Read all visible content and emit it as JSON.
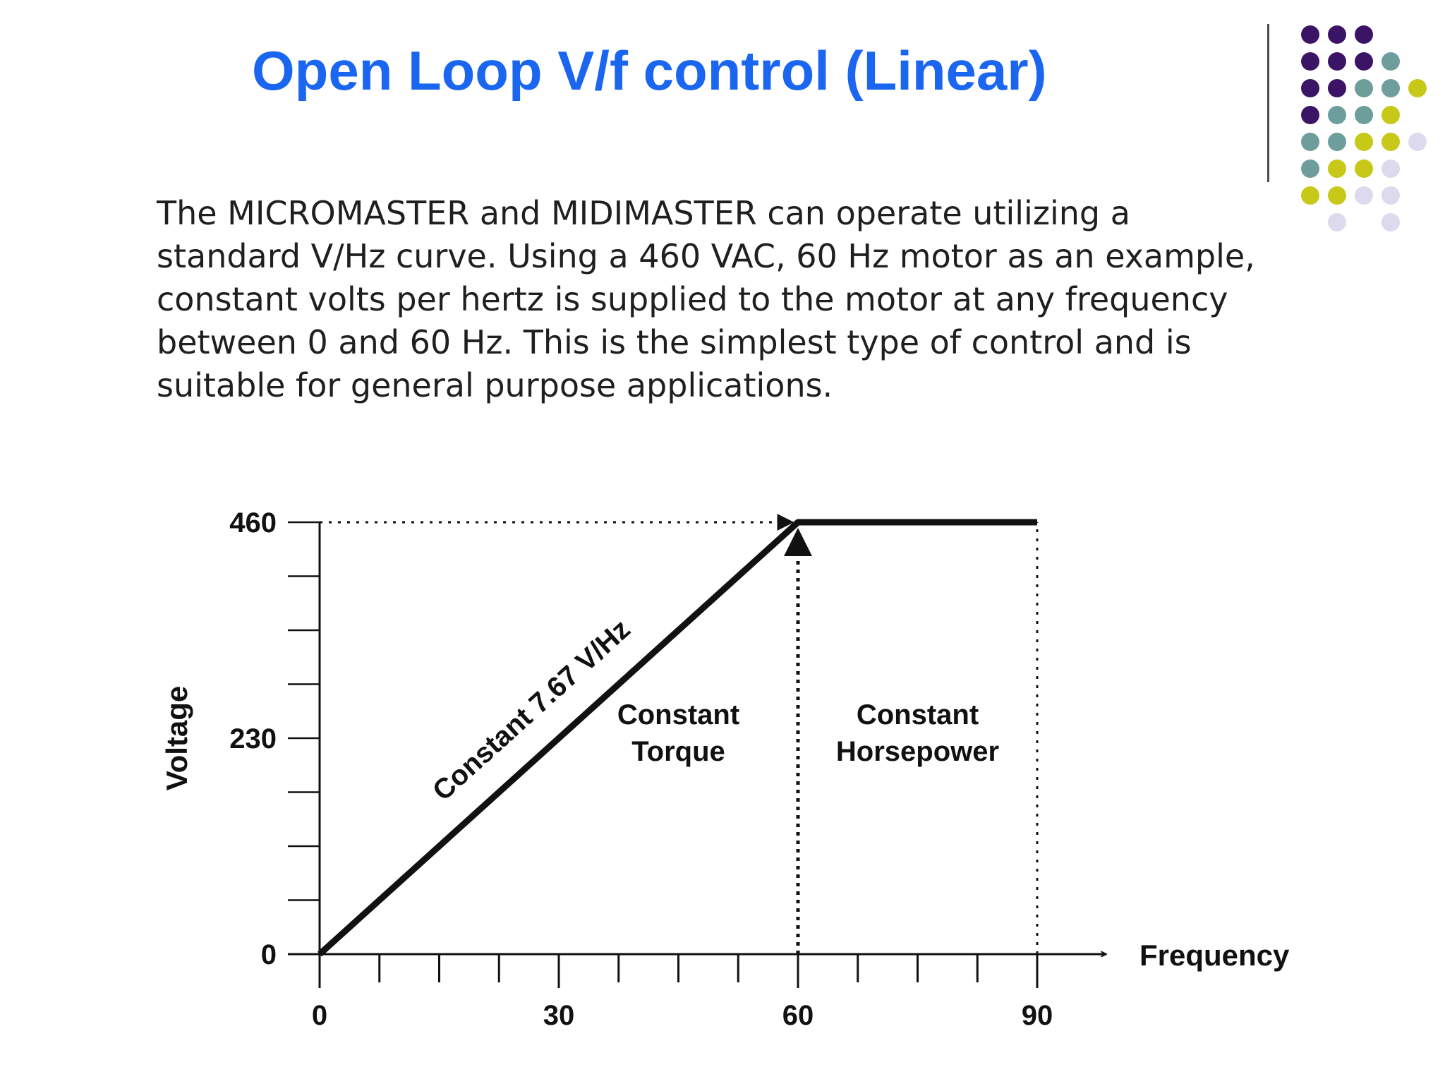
{
  "slide": {
    "title": "Open Loop V/f control (Linear)",
    "body": "The MICROMASTER and MIDIMASTER can operate utilizing a standard V/Hz curve. Using a 460 VAC, 60 Hz motor as an example, constant volts per hertz is supplied to the motor at any frequency between 0 and 60 Hz. This is the simplest type of control and is suitable for general purpose applications."
  },
  "colors": {
    "title": "#1a66f0",
    "divider": "#4d4d4d",
    "dot_purple": "#3b1466",
    "dot_teal": "#6e9e9c",
    "dot_yellow": "#c8c818",
    "dot_lavender": "#dcdaec",
    "ink": "#111111"
  },
  "decoration": {
    "dot_grid": [
      "PPP   ",
      "PPPT  ",
      "PPTTY ",
      "PTTY  ",
      "TTYYL ",
      "TYYL  ",
      "YYLL  ",
      " L L  "
    ]
  },
  "chart_data": {
    "type": "line",
    "xlabel": "Frequency",
    "ylabel": "Voltage",
    "xlim": [
      0,
      90
    ],
    "ylim": [
      0,
      460
    ],
    "xticks": [
      0,
      30,
      60,
      90
    ],
    "xtick_labels": [
      "0",
      "30",
      "60",
      "90"
    ],
    "yticks": [
      0,
      230,
      460
    ],
    "ytick_labels": [
      "0",
      "230",
      "460"
    ],
    "x_minor_step": 7.5,
    "y_minor_step": 57.5,
    "series": [
      {
        "x": [
          0,
          60,
          90
        ],
        "y": [
          0,
          460,
          460
        ]
      }
    ],
    "reference_lines": [
      {
        "kind": "horizontal",
        "y": 460,
        "from_x": 0,
        "to_x": 60,
        "style": "dotted",
        "arrow": "end"
      },
      {
        "kind": "vertical",
        "x": 60,
        "from_y": 0,
        "to_y": 460,
        "style": "dotted",
        "arrow": "end"
      },
      {
        "kind": "vertical",
        "x": 90,
        "from_y": 0,
        "to_y": 460,
        "style": "dotted",
        "arrow": "none"
      }
    ],
    "annotations": [
      {
        "text": "Constant 7.67 V/Hz",
        "x": 30,
        "y": 230,
        "along_line": true
      },
      {
        "lines": [
          "Constant",
          "Torque"
        ],
        "x": 45,
        "y": 215
      },
      {
        "lines": [
          "Constant",
          "Horsepower"
        ],
        "x": 75,
        "y": 215
      }
    ],
    "grid": false,
    "legend": "none"
  }
}
